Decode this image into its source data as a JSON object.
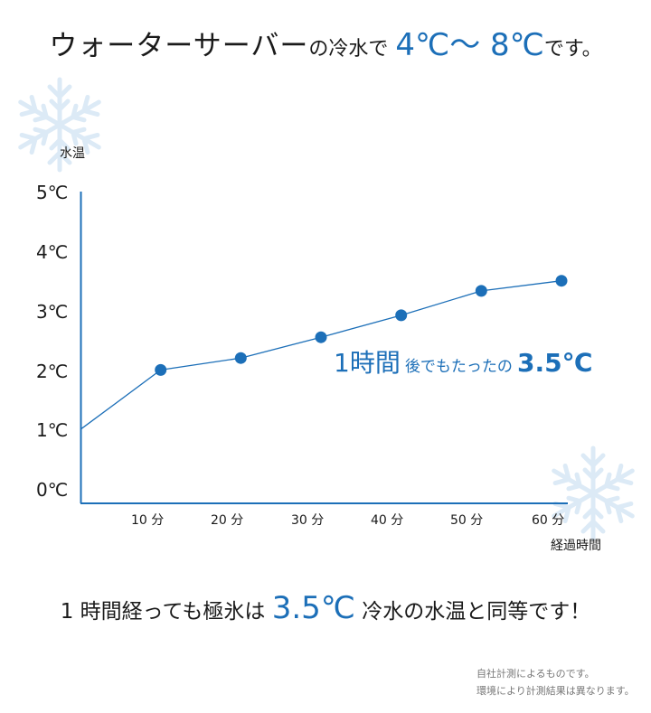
{
  "headline": {
    "part1": "ウォーターサーバー",
    "part2": "の冷水で",
    "range": "4℃〜 8℃",
    "part3": "です。"
  },
  "callout": {
    "time": "1時間",
    "text": "後でもたったの",
    "value": "3.5℃"
  },
  "bottom_message": {
    "part1": "1 時間経っても極氷は",
    "value": "3.5℃",
    "part2": "冷水の水温と同等です！"
  },
  "notes": [
    "自社計測によるものです。",
    "環境により計測結果は異なります。"
  ],
  "colors": {
    "accent": "#1c6fb8",
    "axis": "#1c6fb8",
    "snowflake": "#dceaf6"
  },
  "icons": [
    "snowflake-icon",
    "snowflake-icon"
  ],
  "chart_data": {
    "type": "line",
    "title": "",
    "ylabel": "水温",
    "xlabel": "経過時間",
    "y_ticks": [
      "0℃",
      "1℃",
      "2℃",
      "3℃",
      "4℃",
      "5℃"
    ],
    "x_ticks": [
      "10 分",
      "20 分",
      "30 分",
      "40 分",
      "50 分",
      "60 分"
    ],
    "ylim": [
      0,
      5
    ],
    "xlim": [
      0,
      60
    ],
    "grid": false,
    "legend": "none",
    "series": [
      {
        "x": [
          0,
          10,
          20,
          30,
          40,
          50,
          60
        ],
        "y": [
          1.0,
          2.0,
          2.2,
          2.55,
          2.92,
          3.33,
          3.5
        ],
        "markers": [
          false,
          true,
          true,
          true,
          true,
          true,
          true
        ]
      }
    ]
  }
}
